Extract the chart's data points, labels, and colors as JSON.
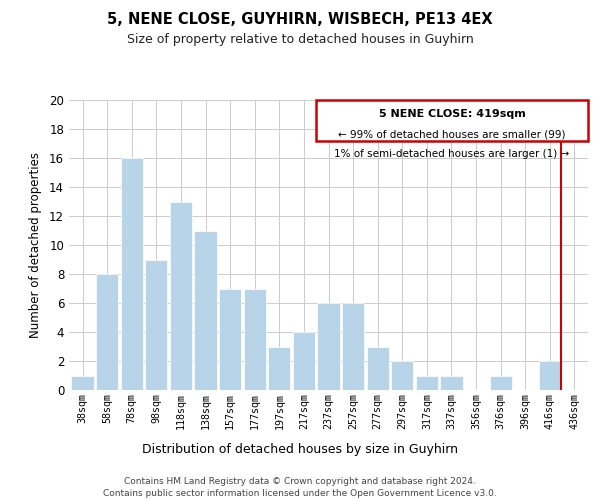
{
  "title": "5, NENE CLOSE, GUYHIRN, WISBECH, PE13 4EX",
  "subtitle": "Size of property relative to detached houses in Guyhirn",
  "xlabel": "Distribution of detached houses by size in Guyhirn",
  "ylabel": "Number of detached properties",
  "bar_labels": [
    "38sqm",
    "58sqm",
    "78sqm",
    "98sqm",
    "118sqm",
    "138sqm",
    "157sqm",
    "177sqm",
    "197sqm",
    "217sqm",
    "237sqm",
    "257sqm",
    "277sqm",
    "297sqm",
    "317sqm",
    "337sqm",
    "356sqm",
    "376sqm",
    "396sqm",
    "416sqm",
    "436sqm"
  ],
  "bar_values": [
    1,
    8,
    16,
    9,
    13,
    11,
    7,
    7,
    3,
    4,
    6,
    6,
    3,
    2,
    1,
    1,
    0,
    1,
    0,
    2,
    0
  ],
  "bar_color": "#b8d4e8",
  "highlight_line_color": "#cc0000",
  "highlight_bar_index": 19,
  "ylim": [
    0,
    20
  ],
  "yticks": [
    0,
    2,
    4,
    6,
    8,
    10,
    12,
    14,
    16,
    18,
    20
  ],
  "annotation_title": "5 NENE CLOSE: 419sqm",
  "annotation_line1": "← 99% of detached houses are smaller (99)",
  "annotation_line2": "1% of semi-detached houses are larger (1) →",
  "footer1": "Contains HM Land Registry data © Crown copyright and database right 2024.",
  "footer2": "Contains public sector information licensed under the Open Government Licence v3.0."
}
